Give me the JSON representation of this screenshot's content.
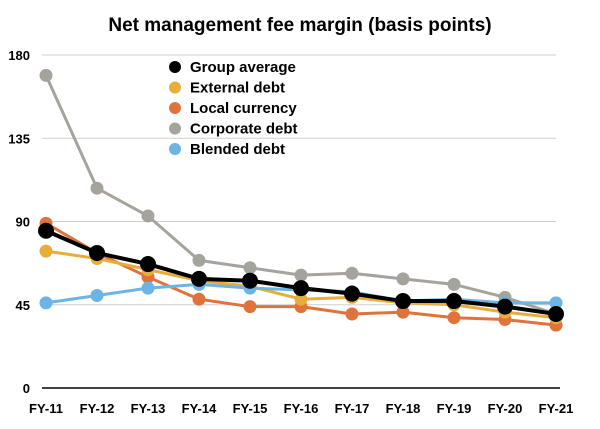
{
  "chart_data": {
    "type": "line",
    "title": "Net management fee margin (basis points)",
    "xlabel": "",
    "ylabel": "",
    "categories": [
      "FY-11",
      "FY-12",
      "FY-13",
      "FY-14",
      "FY-15",
      "FY-16",
      "FY-17",
      "FY-18",
      "FY-19",
      "FY-20",
      "FY-21"
    ],
    "ylim": [
      0,
      180
    ],
    "yticks": [
      0,
      45,
      90,
      135,
      180
    ],
    "grid": "horizontal",
    "legend_position": "top-center",
    "series": [
      {
        "name": "Corporate debt",
        "color": "#a6a39d",
        "values": [
          169,
          108,
          93,
          69,
          65,
          61,
          62,
          59,
          56,
          49,
          40
        ]
      },
      {
        "name": "Local currency",
        "color": "#e0733b",
        "values": [
          89,
          73,
          60,
          48,
          44,
          44,
          40,
          41,
          38,
          37,
          34
        ]
      },
      {
        "name": "External debt",
        "color": "#e8ad3a",
        "values": [
          74,
          70,
          64,
          58,
          55,
          48,
          49,
          46,
          45,
          41,
          38
        ]
      },
      {
        "name": "Blended debt",
        "color": "#6cb4e4",
        "values": [
          46,
          50,
          54,
          56,
          54,
          53,
          52,
          47,
          48,
          46,
          46
        ]
      },
      {
        "name": "Group average",
        "color": "#000000",
        "values": [
          85,
          73,
          67,
          59,
          58,
          54,
          51,
          47,
          47,
          44,
          40
        ]
      }
    ],
    "legend_order": [
      "Group average",
      "External debt",
      "Local currency",
      "Corporate debt",
      "Blended debt"
    ]
  }
}
